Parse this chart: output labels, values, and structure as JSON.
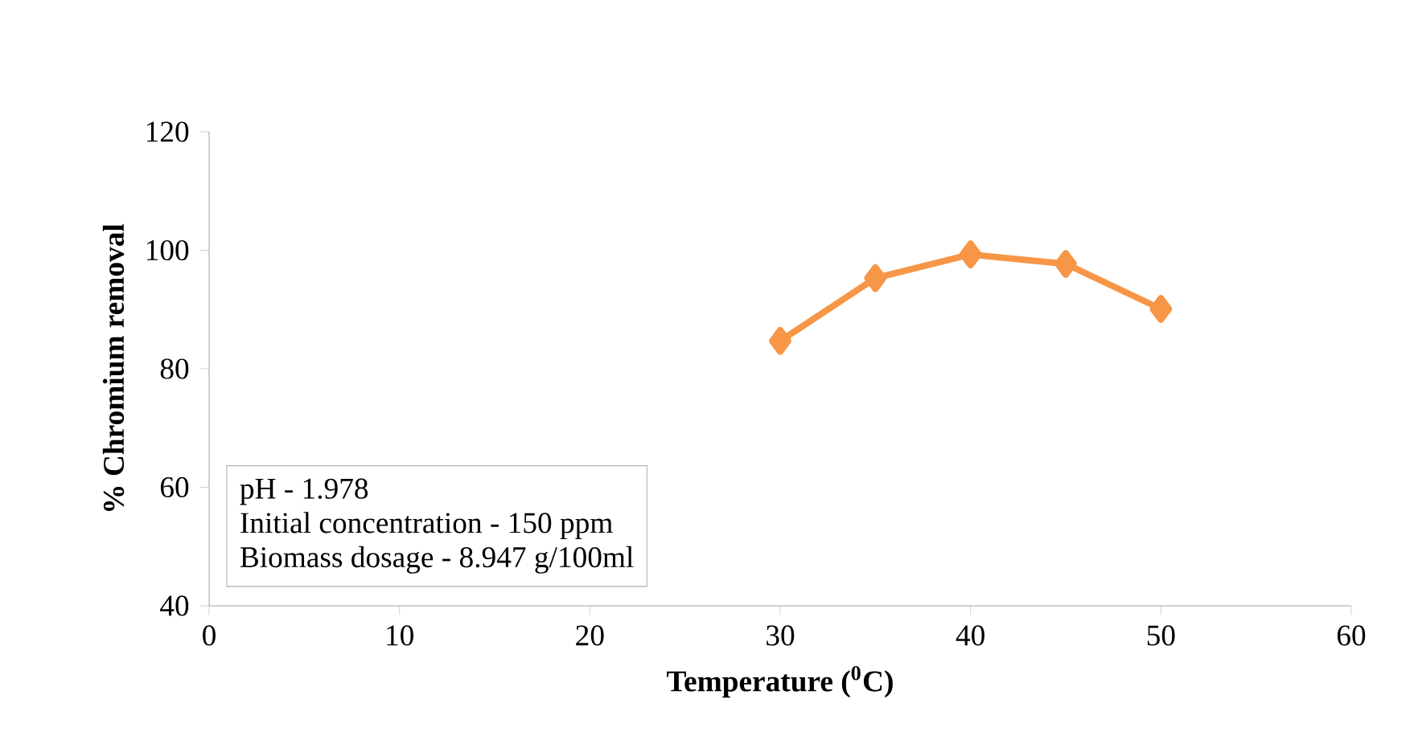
{
  "chart_data": {
    "type": "line",
    "xlabel": "Temperature ($^{0}$C)",
    "ylabel": "% Chromium removal",
    "x": [
      30,
      35,
      40,
      45,
      50
    ],
    "series": [
      {
        "color": "#f79646",
        "values": [
          84.7,
          95.3,
          99.3,
          97.7,
          90.1
        ]
      }
    ],
    "xlim": [
      0,
      60
    ],
    "xticks": [
      0,
      10,
      20,
      30,
      40,
      50,
      60
    ],
    "ylim": [
      40,
      120
    ],
    "yticks": [
      40,
      60,
      80,
      100,
      120
    ],
    "marker": "diamond",
    "line_style": "solid",
    "annotations": [
      "pH                              - 1.978",
      "Initial concentration  - 150 ppm",
      "Biomass dosage         - 8.947 g/100ml"
    ]
  }
}
